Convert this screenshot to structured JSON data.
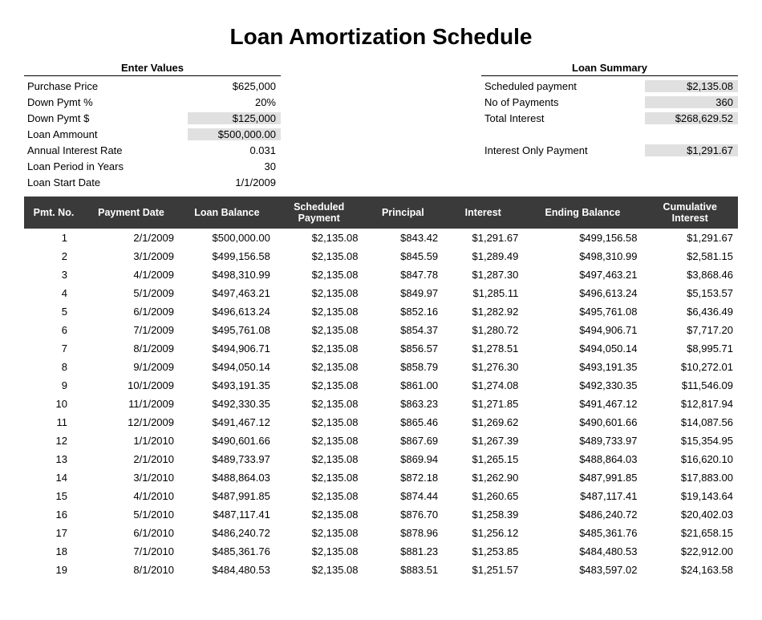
{
  "title": "Loan Amortization Schedule",
  "enter_values": {
    "header": "Enter Values",
    "rows": [
      {
        "label": "Purchase Price",
        "value": "$625,000",
        "shaded": false
      },
      {
        "label": "Down Pymt %",
        "value": "20%",
        "shaded": false
      },
      {
        "label": "Down Pymt $",
        "value": "$125,000",
        "shaded": true
      },
      {
        "label": "Loan Ammount",
        "value": "$500,000.00",
        "shaded": true
      },
      {
        "label": "Annual Interest Rate",
        "value": "0.031",
        "shaded": false
      },
      {
        "label": "Loan Period in Years",
        "value": "30",
        "shaded": false
      },
      {
        "label": "Loan Start Date",
        "value": "1/1/2009",
        "shaded": false
      }
    ]
  },
  "loan_summary": {
    "header": "Loan Summary",
    "rows": [
      {
        "label": "Scheduled payment",
        "value": "$2,135.08",
        "shaded": true
      },
      {
        "label": "No of Payments",
        "value": "360",
        "shaded": true
      },
      {
        "label": "Total Interest",
        "value": "$268,629.52",
        "shaded": true
      },
      {
        "label": "",
        "value": "",
        "shaded": false
      },
      {
        "label": "Interest Only Payment",
        "value": "$1,291.67",
        "shaded": true
      }
    ]
  },
  "schedule": {
    "columns": [
      "Pmt. No.",
      "Payment Date",
      "Loan Balance",
      "Scheduled Payment",
      "Principal",
      "Interest",
      "Ending Balance",
      "Cumulative Interest"
    ],
    "header_bg": "#3a3a3a",
    "header_fg": "#ffffff",
    "rows": [
      [
        "1",
        "2/1/2009",
        "$500,000.00",
        "$2,135.08",
        "$843.42",
        "$1,291.67",
        "$499,156.58",
        "$1,291.67"
      ],
      [
        "2",
        "3/1/2009",
        "$499,156.58",
        "$2,135.08",
        "$845.59",
        "$1,289.49",
        "$498,310.99",
        "$2,581.15"
      ],
      [
        "3",
        "4/1/2009",
        "$498,310.99",
        "$2,135.08",
        "$847.78",
        "$1,287.30",
        "$497,463.21",
        "$3,868.46"
      ],
      [
        "4",
        "5/1/2009",
        "$497,463.21",
        "$2,135.08",
        "$849.97",
        "$1,285.11",
        "$496,613.24",
        "$5,153.57"
      ],
      [
        "5",
        "6/1/2009",
        "$496,613.24",
        "$2,135.08",
        "$852.16",
        "$1,282.92",
        "$495,761.08",
        "$6,436.49"
      ],
      [
        "6",
        "7/1/2009",
        "$495,761.08",
        "$2,135.08",
        "$854.37",
        "$1,280.72",
        "$494,906.71",
        "$7,717.20"
      ],
      [
        "7",
        "8/1/2009",
        "$494,906.71",
        "$2,135.08",
        "$856.57",
        "$1,278.51",
        "$494,050.14",
        "$8,995.71"
      ],
      [
        "8",
        "9/1/2009",
        "$494,050.14",
        "$2,135.08",
        "$858.79",
        "$1,276.30",
        "$493,191.35",
        "$10,272.01"
      ],
      [
        "9",
        "10/1/2009",
        "$493,191.35",
        "$2,135.08",
        "$861.00",
        "$1,274.08",
        "$492,330.35",
        "$11,546.09"
      ],
      [
        "10",
        "11/1/2009",
        "$492,330.35",
        "$2,135.08",
        "$863.23",
        "$1,271.85",
        "$491,467.12",
        "$12,817.94"
      ],
      [
        "11",
        "12/1/2009",
        "$491,467.12",
        "$2,135.08",
        "$865.46",
        "$1,269.62",
        "$490,601.66",
        "$14,087.56"
      ],
      [
        "12",
        "1/1/2010",
        "$490,601.66",
        "$2,135.08",
        "$867.69",
        "$1,267.39",
        "$489,733.97",
        "$15,354.95"
      ],
      [
        "13",
        "2/1/2010",
        "$489,733.97",
        "$2,135.08",
        "$869.94",
        "$1,265.15",
        "$488,864.03",
        "$16,620.10"
      ],
      [
        "14",
        "3/1/2010",
        "$488,864.03",
        "$2,135.08",
        "$872.18",
        "$1,262.90",
        "$487,991.85",
        "$17,883.00"
      ],
      [
        "15",
        "4/1/2010",
        "$487,991.85",
        "$2,135.08",
        "$874.44",
        "$1,260.65",
        "$487,117.41",
        "$19,143.64"
      ],
      [
        "16",
        "5/1/2010",
        "$487,117.41",
        "$2,135.08",
        "$876.70",
        "$1,258.39",
        "$486,240.72",
        "$20,402.03"
      ],
      [
        "17",
        "6/1/2010",
        "$486,240.72",
        "$2,135.08",
        "$878.96",
        "$1,256.12",
        "$485,361.76",
        "$21,658.15"
      ],
      [
        "18",
        "7/1/2010",
        "$485,361.76",
        "$2,135.08",
        "$881.23",
        "$1,253.85",
        "$484,480.53",
        "$22,912.00"
      ],
      [
        "19",
        "8/1/2010",
        "$484,480.53",
        "$2,135.08",
        "$883.51",
        "$1,251.57",
        "$483,597.02",
        "$24,163.58"
      ]
    ]
  },
  "styling": {
    "background_color": "#ffffff",
    "shaded_cell_color": "#e0e0e0",
    "header_row_bg": "#3a3a3a",
    "header_row_fg": "#ffffff",
    "title_fontsize": 28,
    "body_fontsize": 13,
    "font_family": "Arial"
  }
}
